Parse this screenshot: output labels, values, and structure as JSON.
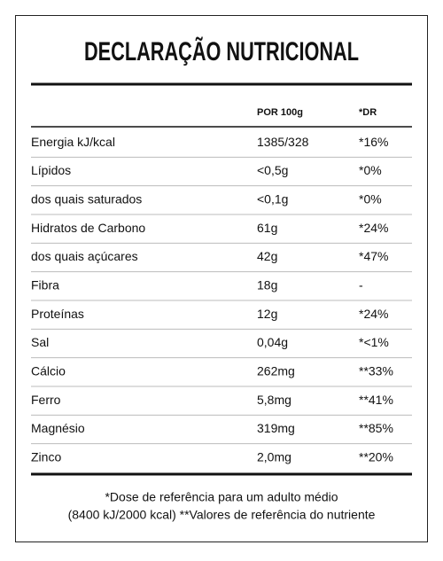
{
  "title": "DECLARAÇÃO NUTRICIONAL",
  "table": {
    "header": [
      "POR 100g",
      "*DR"
    ],
    "rows": [
      [
        "Energia kJ/kcal",
        "1385/328",
        "*16%"
      ],
      [
        "Lípidos",
        "<0,5g",
        "*0%"
      ],
      [
        "dos quais saturados",
        "<0,1g",
        "*0%"
      ],
      [
        "Hidratos de Carbono",
        "61g",
        "*24%"
      ],
      [
        "dos quais açúcares",
        "42g",
        "*47%"
      ],
      [
        "Fibra",
        "18g",
        "-"
      ],
      [
        "Proteínas",
        "12g",
        "*24%"
      ],
      [
        "Sal",
        "0,04g",
        "*<1%"
      ],
      [
        "Cálcio",
        "262mg",
        "**33%"
      ],
      [
        "Ferro",
        "5,8mg",
        "**41%"
      ],
      [
        "Magnésio",
        "319mg",
        "**85%"
      ],
      [
        "Zinco",
        "2,0mg",
        "**20%"
      ]
    ]
  },
  "footnote": [
    "*Dose de referência para um adulto médio",
    "(8400 kJ/2000 kcal) **Valores de referência do nutriente"
  ]
}
